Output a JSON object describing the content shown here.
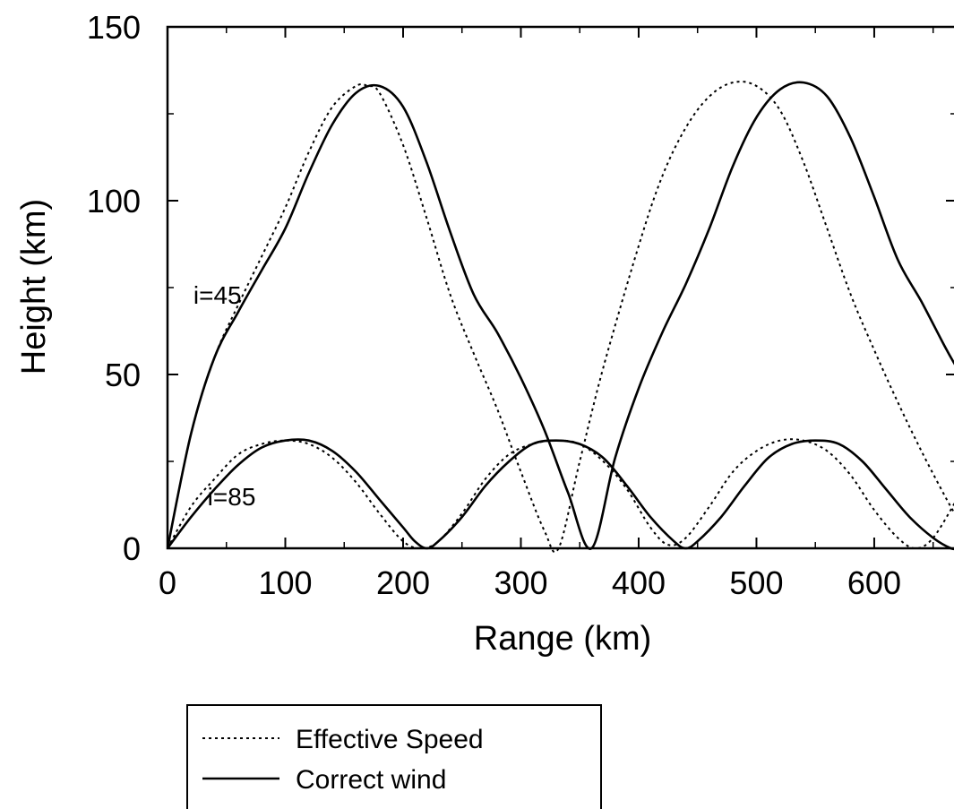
{
  "chart_data": {
    "type": "line",
    "title": "",
    "xlabel": "Range (km)",
    "ylabel": "Height (km)",
    "xlim": [
      0,
      670
    ],
    "ylim": [
      0,
      150
    ],
    "xticks": [
      0,
      100,
      200,
      300,
      400,
      500,
      600
    ],
    "yticks": [
      0,
      50,
      100,
      150
    ],
    "grid": false,
    "legend_position": "below-left",
    "annotations": [
      {
        "text": "i=45",
        "x": 60,
        "y": 73
      },
      {
        "text": "i=85",
        "x": 72,
        "y": 15
      }
    ],
    "series": [
      {
        "name": "Effective Speed",
        "style": "dotted",
        "color": "#000000",
        "groups": [
          {
            "label": "i=45",
            "x": [
              0,
              20,
              40,
              60,
              80,
              100,
              120,
              140,
              160,
              170,
              180,
              200,
              220,
              240,
              260,
              280,
              300,
              320,
              332,
              350,
              370,
              400,
              420,
              440,
              460,
              480,
              500,
              520,
              540,
              560,
              580,
              600,
              620,
              640,
              660,
              670
            ],
            "y": [
              0,
              33,
              55,
              70,
              84,
              98,
              114,
              127,
              133,
              133,
              131,
              116,
              95,
              73,
              56,
              40,
              22,
              5,
              0,
              25,
              52,
              87,
              107,
              121,
              130,
              134,
              133,
              126,
              111,
              92,
              73,
              57,
              42,
              28,
              15,
              9
            ]
          },
          {
            "label": "i=85",
            "x": [
              0,
              20,
              40,
              60,
              80,
              100,
              120,
              140,
              160,
              180,
              200,
              215,
              230,
              250,
              270,
              290,
              310,
              330,
              350,
              370,
              390,
              410,
              425,
              440,
              460,
              480,
              500,
              520,
              540,
              560,
              580,
              600,
              620,
              635,
              650,
              670
            ],
            "y": [
              0,
              12,
              20,
              27,
              30,
              31,
              30,
              26,
              19,
              10,
              2,
              0,
              2,
              10,
              20,
              27,
              30,
              31,
              30,
              25,
              17,
              6,
              1,
              3,
              12,
              22,
              28,
              31,
              31,
              28,
              21,
              11,
              3,
              0,
              3,
              14
            ]
          }
        ]
      },
      {
        "name": "Correct wind",
        "style": "solid",
        "color": "#000000",
        "groups": [
          {
            "label": "i=45",
            "x": [
              0,
              20,
              40,
              60,
              80,
              100,
              120,
              140,
              160,
              180,
              200,
              220,
              240,
              260,
              280,
              300,
              320,
              340,
              360,
              380,
              400,
              420,
              440,
              460,
              480,
              500,
              520,
              540,
              560,
              580,
              600,
              620,
              640,
              660,
              670
            ],
            "y": [
              0,
              33,
              55,
              68,
              80,
              92,
              108,
              122,
              131,
              133,
              127,
              111,
              91,
              73,
              62,
              49,
              34,
              16,
              0,
              26,
              46,
              62,
              76,
              92,
              110,
              124,
              132,
              134,
              130,
              118,
              101,
              83,
              71,
              58,
              52
            ]
          },
          {
            "label": "i=85",
            "x": [
              0,
              20,
              40,
              60,
              80,
              100,
              120,
              140,
              160,
              180,
              200,
              210,
              220,
              230,
              250,
              270,
              290,
              310,
              330,
              350,
              370,
              390,
              410,
              430,
              440,
              450,
              470,
              490,
              510,
              530,
              550,
              570,
              590,
              610,
              630,
              650,
              665,
              670
            ],
            "y": [
              0,
              9,
              17,
              24,
              29,
              31,
              31,
              28,
              22,
              14,
              6,
              2,
              0,
              2,
              9,
              18,
              25,
              30,
              31,
              30,
              26,
              18,
              9,
              2,
              0,
              2,
              9,
              18,
              26,
              30,
              31,
              30,
              25,
              17,
              9,
              3,
              0,
              0
            ]
          }
        ]
      }
    ]
  }
}
